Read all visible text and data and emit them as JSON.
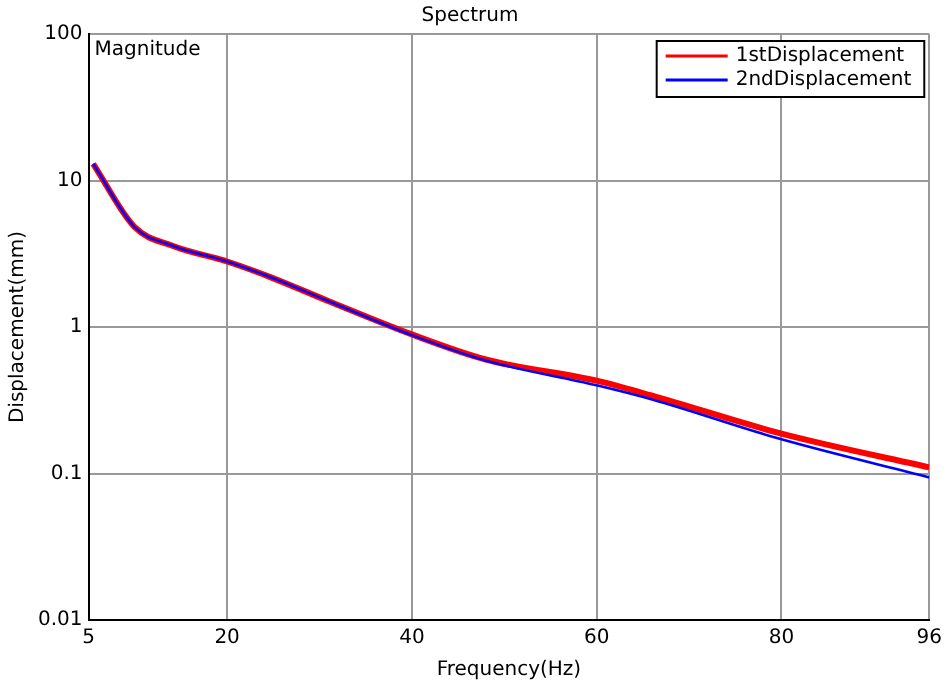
{
  "chart_data": {
    "type": "line",
    "title": "Spectrum",
    "xlabel": "Frequency(Hz)",
    "ylabel": "Displacement(mm)",
    "annotations": [
      "Magnitude"
    ],
    "series": [
      {
        "name": "1stDisplacement",
        "color": "#ff0000",
        "x": [
          5.5,
          10,
          14,
          20,
          24.6,
          31,
          40,
          48,
          60,
          66,
          80,
          96
        ],
        "values": [
          13,
          4.8,
          3.6,
          2.8,
          2.2,
          1.5,
          0.89,
          0.6,
          0.43,
          0.34,
          0.187,
          0.11
        ]
      },
      {
        "name": "2ndDisplacement",
        "color": "#0000ff",
        "x": [
          5.5,
          10,
          14,
          20,
          24.6,
          31,
          40,
          48,
          60,
          66,
          80,
          96
        ],
        "values": [
          13,
          4.8,
          3.6,
          2.8,
          2.2,
          1.5,
          0.88,
          0.59,
          0.4,
          0.32,
          0.171,
          0.094
        ]
      }
    ],
    "xlim": [
      5,
      96
    ],
    "xticks": [
      5,
      20,
      40,
      60,
      80,
      96
    ],
    "ylim": [
      0.01,
      100
    ],
    "yticks": [
      0.01,
      0.1,
      1,
      10,
      100
    ],
    "log": "y",
    "grid": true,
    "legend": "top right",
    "line_style": "solid",
    "marker": "none"
  }
}
